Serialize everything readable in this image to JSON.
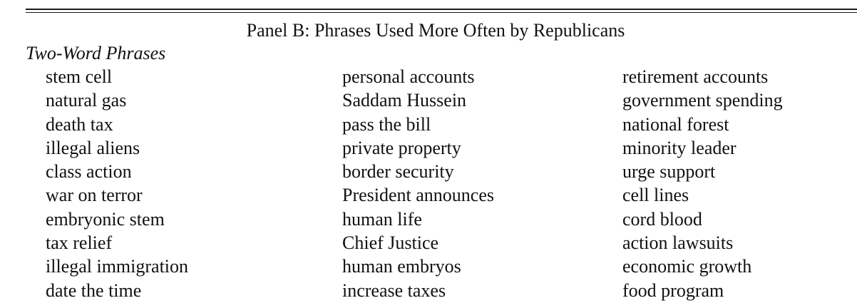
{
  "table": {
    "panel_title": "Panel B: Phrases Used More Often by Republicans",
    "section_heading": "Two-Word Phrases",
    "columns": [
      [
        "stem cell",
        "natural gas",
        "death tax",
        "illegal aliens",
        "class action",
        "war on terror",
        "embryonic stem",
        "tax relief",
        "illegal immigration",
        "date the time"
      ],
      [
        "personal accounts",
        "Saddam Hussein",
        "pass the bill",
        "private property",
        "border security",
        "President announces",
        "human life",
        "Chief Justice",
        "human embryos",
        "increase taxes"
      ],
      [
        "retirement accounts",
        "government spending",
        "national forest",
        "minority leader",
        "urge support",
        "cell lines",
        "cord blood",
        "action lawsuits",
        "economic growth",
        "food program"
      ]
    ]
  }
}
